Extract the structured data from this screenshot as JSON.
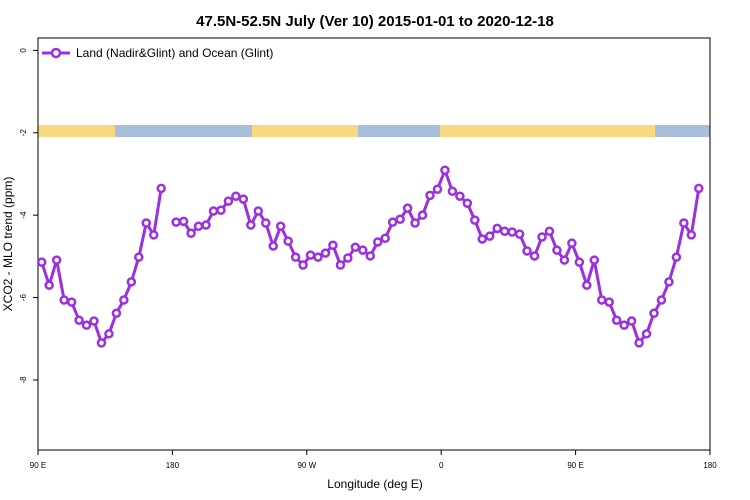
{
  "chart_data": {
    "type": "line",
    "title": "47.5N-52.5N July (Ver 10)   2015-01-01 to 2020-12-18",
    "x_label": "Longitude (deg E)",
    "y_label": "XCO2 - MLO trend (ppm)",
    "xlim": [
      90,
      540
    ],
    "ylim": [
      -9.7,
      0.3
    ],
    "xticks": [
      {
        "value": 90,
        "label": "90 E"
      },
      {
        "value": 180,
        "label": "180"
      },
      {
        "value": 270,
        "label": "90 W"
      },
      {
        "value": 360,
        "label": "0"
      },
      {
        "value": 450,
        "label": "90 E"
      },
      {
        "value": 540,
        "label": "180"
      }
    ],
    "yticks": [
      0,
      -2,
      -4,
      -6,
      -8
    ],
    "legend_position": "top-left",
    "x": [
      92.5,
      97.5,
      102.5,
      107.5,
      112.5,
      117.5,
      122.5,
      127.5,
      132.5,
      137.5,
      142.5,
      147.5,
      152.5,
      157.5,
      162.5,
      167.5,
      172.5,
      177.5,
      182.5,
      187.5,
      192.5,
      197.5,
      202.5,
      207.5,
      212.5,
      217.5,
      222.5,
      227.5,
      232.5,
      237.5,
      242.5,
      247.5,
      252.5,
      257.5,
      262.5,
      267.5,
      272.5,
      277.5,
      282.5,
      287.5,
      292.5,
      297.5,
      302.5,
      307.5,
      312.5,
      317.5,
      322.5,
      327.5,
      332.5,
      337.5,
      342.5,
      347.5,
      352.5,
      357.5,
      362.5,
      367.5,
      372.5,
      377.5,
      382.5,
      387.5,
      392.5,
      397.5,
      402.5,
      407.5,
      412.5,
      417.5,
      422.5,
      427.5,
      432.5,
      437.5,
      442.5,
      447.5,
      452.5,
      457.5,
      462.5,
      467.5,
      472.5,
      477.5,
      482.5,
      487.5,
      492.5,
      497.5,
      502.5,
      507.5,
      512.5,
      517.5,
      522.5,
      527.5,
      532.5
    ],
    "series": [
      {
        "name": "Land (Nadir&Glint) and Ocean (Glint)",
        "color": "#9b30e0",
        "values": [
          -5.14,
          -5.7,
          -5.09,
          -6.06,
          -6.11,
          -6.55,
          -6.67,
          -6.57,
          -7.1,
          -6.88,
          -6.38,
          -6.06,
          -5.62,
          -5.02,
          -4.19,
          -4.48,
          -3.35,
          null,
          -4.17,
          -4.15,
          -4.44,
          -4.27,
          -4.24,
          -3.9,
          -3.88,
          -3.66,
          -3.54,
          -3.61,
          -4.24,
          -3.9,
          -4.19,
          -4.75,
          -4.27,
          -4.63,
          -5.02,
          -5.21,
          -4.97,
          -5.02,
          -4.92,
          -4.73,
          -5.21,
          -5.04,
          -4.78,
          -4.85,
          -4.99,
          -4.65,
          -4.56,
          -4.17,
          -4.1,
          -3.83,
          -4.19,
          -4.0,
          -3.52,
          -3.37,
          -2.91,
          -3.42,
          -3.54,
          -3.71,
          -4.12,
          -4.58,
          -4.51,
          -4.32,
          -4.39,
          -4.41,
          -4.46,
          -4.87,
          -4.99,
          -4.53,
          -4.39,
          -4.85,
          -5.09,
          -4.68,
          -5.14,
          -5.7,
          -5.09,
          -6.06,
          -6.11,
          -6.55,
          -6.67,
          -6.57,
          -7.1,
          -6.88,
          -6.38,
          -6.06,
          -5.62,
          -5.02,
          -4.19,
          -4.48,
          -3.35
        ]
      }
    ]
  }
}
